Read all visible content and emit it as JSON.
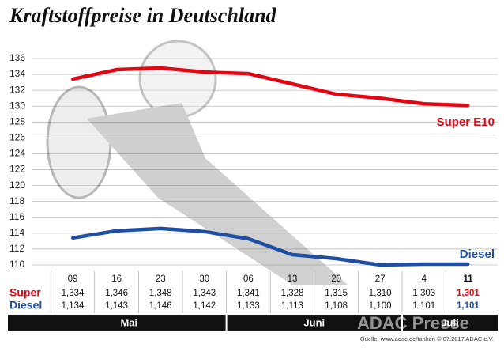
{
  "chart_data": {
    "type": "line",
    "title": "Kraftstoffpreise in Deutschland",
    "categories": [
      "09",
      "16",
      "23",
      "30",
      "06",
      "13",
      "20",
      "27",
      "4",
      "11"
    ],
    "series": [
      {
        "name": "Super E10",
        "row_label": "Super",
        "color": "#e30613",
        "values": [
          133.4,
          134.6,
          134.8,
          134.3,
          134.1,
          132.8,
          131.5,
          131.0,
          130.3,
          130.1
        ],
        "value_labels": [
          "1,334",
          "1,346",
          "1,348",
          "1,343",
          "1,341",
          "1,328",
          "1,315",
          "1,310",
          "1,303",
          "1,301"
        ]
      },
      {
        "name": "Diesel",
        "row_label": "Diesel",
        "color": "#1e4fa3",
        "values": [
          113.4,
          114.3,
          114.6,
          114.2,
          113.3,
          111.3,
          110.8,
          110.0,
          110.1,
          110.1
        ],
        "value_labels": [
          "1,134",
          "1,143",
          "1,146",
          "1,142",
          "1,133",
          "1,113",
          "1,108",
          "1,100",
          "1,101",
          "1,101"
        ]
      }
    ],
    "months": [
      "Mai",
      "Juni",
      "Juli"
    ],
    "ylim": [
      110,
      136
    ],
    "yticks": [
      110,
      112,
      114,
      116,
      118,
      120,
      122,
      124,
      126,
      128,
      130,
      132,
      134,
      136
    ],
    "grid": true,
    "source": "Quelle: www.adac.de/tanken  © 07.2017  ADAC e.V.",
    "watermark": "ADAC Presse"
  }
}
